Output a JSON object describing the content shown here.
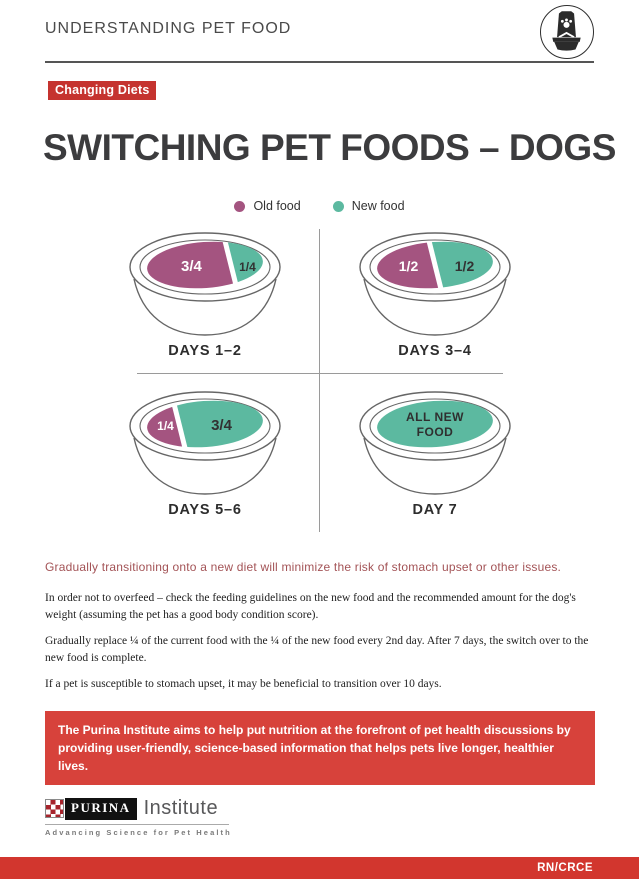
{
  "header": {
    "title": "UNDERSTANDING PET FOOD",
    "icon": "pet-food-bag-and-bowl"
  },
  "badge": {
    "label": "Changing Diets"
  },
  "main_title": "SWITCHING PET FOODS – DOGS",
  "legend": {
    "old": {
      "label": "Old food",
      "color": "#a45480"
    },
    "new": {
      "label": "New food",
      "color": "#5cb9a0"
    }
  },
  "bowls": [
    {
      "label": "DAYS 1–2",
      "split": 0.72,
      "portions": [
        {
          "type": "old",
          "fraction": "3/4",
          "value": 0.75
        },
        {
          "type": "new",
          "fraction": "1/4",
          "value": 0.25
        }
      ]
    },
    {
      "label": "DAYS 3–4",
      "split": 0.5,
      "portions": [
        {
          "type": "old",
          "fraction": "1/2",
          "value": 0.5
        },
        {
          "type": "new",
          "fraction": "1/2",
          "value": 0.5
        }
      ]
    },
    {
      "label": "DAYS 5–6",
      "split": 0.28,
      "portions": [
        {
          "type": "old",
          "fraction": "1/4",
          "value": 0.25
        },
        {
          "type": "new",
          "fraction": "3/4",
          "value": 0.75
        }
      ]
    },
    {
      "label": "DAY 7",
      "split": 0,
      "portions": [
        {
          "type": "new",
          "fraction": "ALL NEW FOOD",
          "value": 1
        }
      ]
    }
  ],
  "highlight": "Gradually transitioning onto a new diet will minimize the risk of stomach upset or other issues.",
  "paragraphs": [
    "In order not to overfeed – check the feeding guidelines on the new food and the recommended amount for the dog's weight (assuming the pet has a good body condition score).",
    "Gradually replace ¼ of the current food with the ¼ of the new food every 2nd day. After 7 days, the switch over to the new food is complete.",
    "If a pet is susceptible to stomach upset, it may be beneficial to transition over 10 days."
  ],
  "callout": "The Purina Institute aims to help put nutrition at the forefront of pet health discussions by providing user-friendly, science-based information that helps pets live longer, healthier lives.",
  "footer": {
    "brand": "PURINA",
    "brand_suffix": "Institute",
    "tagline": "Advancing Science for Pet Health",
    "code": "RN/CRCE"
  },
  "colors": {
    "old_food": "#a45480",
    "new_food": "#5cb9a0",
    "accent_red": "#d2362e",
    "badge_red": "#c5332f",
    "callout_red": "#d7423b"
  }
}
